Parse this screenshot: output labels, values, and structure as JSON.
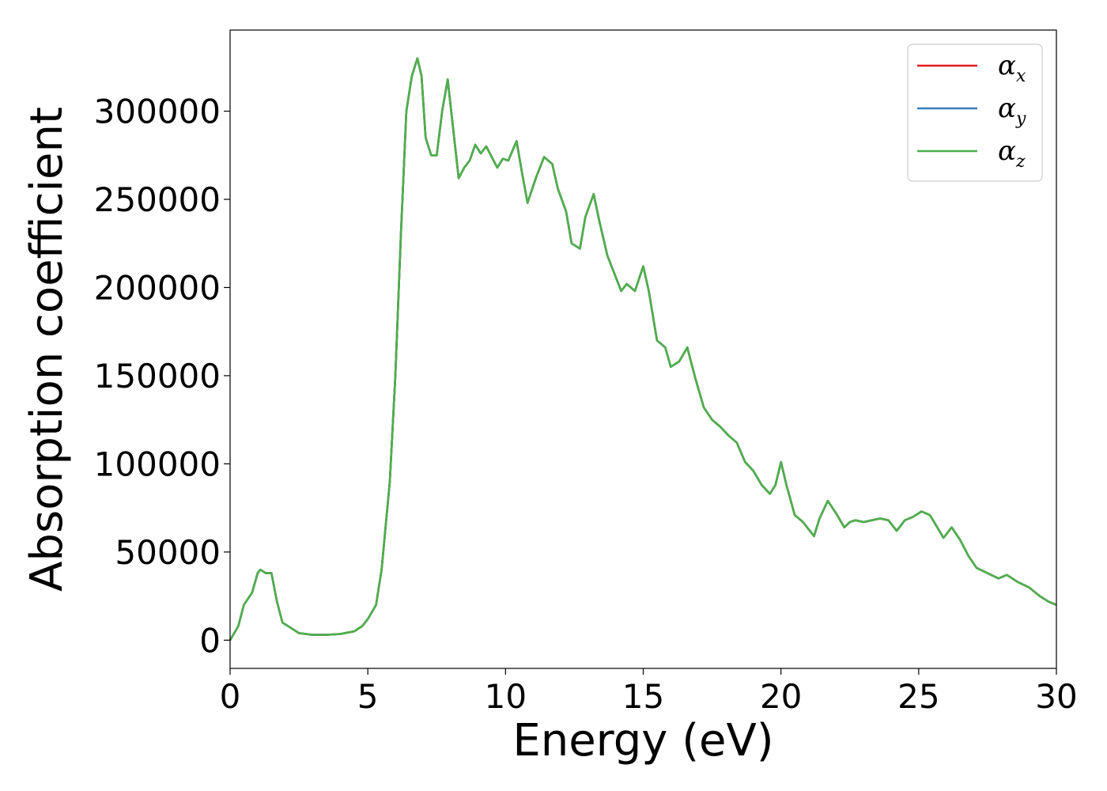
{
  "chart_data": {
    "type": "line",
    "xlabel": "Energy (eV)",
    "ylabel": "Absorption coefficient",
    "xlim": [
      0,
      30
    ],
    "ylim": [
      -16000,
      346000
    ],
    "xticks": [
      0,
      5,
      10,
      15,
      20,
      25,
      30
    ],
    "yticks": [
      0,
      50000,
      100000,
      150000,
      200000,
      250000,
      300000
    ],
    "xtick_labels": [
      "0",
      "5",
      "10",
      "15",
      "20",
      "25",
      "30"
    ],
    "ytick_labels": [
      "0",
      "50000",
      "100000",
      "150000",
      "200000",
      "250000",
      "300000"
    ],
    "grid": false,
    "legend_position": "top-right",
    "x": [
      0,
      0.3,
      0.5,
      0.8,
      1.0,
      1.1,
      1.3,
      1.5,
      1.7,
      1.9,
      2.2,
      2.5,
      3.0,
      3.5,
      4.0,
      4.5,
      4.8,
      5.0,
      5.3,
      5.5,
      5.8,
      6.0,
      6.2,
      6.4,
      6.6,
      6.8,
      6.95,
      7.1,
      7.3,
      7.5,
      7.7,
      7.9,
      8.1,
      8.3,
      8.5,
      8.7,
      8.9,
      9.1,
      9.3,
      9.5,
      9.7,
      9.9,
      10.1,
      10.4,
      10.6,
      10.8,
      11.1,
      11.4,
      11.7,
      11.9,
      12.2,
      12.4,
      12.7,
      12.9,
      13.2,
      13.4,
      13.7,
      13.9,
      14.2,
      14.4,
      14.7,
      15.0,
      15.2,
      15.5,
      15.8,
      16.0,
      16.3,
      16.6,
      16.9,
      17.2,
      17.5,
      17.8,
      18.1,
      18.4,
      18.7,
      19.0,
      19.3,
      19.6,
      19.8,
      20.0,
      20.2,
      20.5,
      20.8,
      21.2,
      21.4,
      21.7,
      22.0,
      22.3,
      22.5,
      22.7,
      23.0,
      23.3,
      23.6,
      23.9,
      24.2,
      24.5,
      24.8,
      25.1,
      25.4,
      25.6,
      25.9,
      26.2,
      26.5,
      26.8,
      27.1,
      27.5,
      27.9,
      28.2,
      28.6,
      29.0,
      29.4,
      29.7,
      30.0
    ],
    "series": [
      {
        "name": "α_x",
        "color": "#e41a1c",
        "values": [
          0,
          8000,
          20000,
          27000,
          38000,
          40000,
          38000,
          38000,
          22000,
          10000,
          7000,
          4000,
          3000,
          3000,
          3500,
          5000,
          8000,
          12000,
          20000,
          40000,
          90000,
          150000,
          230000,
          300000,
          320000,
          330000,
          320000,
          285000,
          275000,
          275000,
          300000,
          318000,
          290000,
          262000,
          268000,
          272000,
          281000,
          276000,
          280000,
          274000,
          268000,
          273000,
          272000,
          283000,
          265000,
          248000,
          262000,
          274000,
          270000,
          256000,
          243000,
          225000,
          222000,
          240000,
          253000,
          238000,
          218000,
          210000,
          198000,
          202000,
          198000,
          212000,
          198000,
          170000,
          166000,
          155000,
          158000,
          166000,
          148000,
          132000,
          125000,
          121000,
          116000,
          112000,
          101000,
          96000,
          88000,
          83000,
          88000,
          101000,
          88000,
          71000,
          67000,
          59000,
          69000,
          79000,
          72000,
          64000,
          67000,
          68000,
          67000,
          68000,
          69000,
          68000,
          62000,
          68000,
          70000,
          73000,
          71000,
          66000,
          58000,
          64000,
          57000,
          48000,
          41000,
          38000,
          35000,
          37000,
          33000,
          30000,
          25000,
          22000,
          20000
        ]
      },
      {
        "name": "α_y",
        "color": "#377eb8",
        "values": [
          0,
          8000,
          20000,
          27000,
          38000,
          40000,
          38000,
          38000,
          22000,
          10000,
          7000,
          4000,
          3000,
          3000,
          3500,
          5000,
          8000,
          12000,
          20000,
          40000,
          90000,
          150000,
          230000,
          300000,
          320000,
          330000,
          320000,
          285000,
          275000,
          275000,
          300000,
          318000,
          290000,
          262000,
          268000,
          272000,
          281000,
          276000,
          280000,
          274000,
          268000,
          273000,
          272000,
          283000,
          265000,
          248000,
          262000,
          274000,
          270000,
          256000,
          243000,
          225000,
          222000,
          240000,
          253000,
          238000,
          218000,
          210000,
          198000,
          202000,
          198000,
          212000,
          198000,
          170000,
          166000,
          155000,
          158000,
          166000,
          148000,
          132000,
          125000,
          121000,
          116000,
          112000,
          101000,
          96000,
          88000,
          83000,
          88000,
          101000,
          88000,
          71000,
          67000,
          59000,
          69000,
          79000,
          72000,
          64000,
          67000,
          68000,
          67000,
          68000,
          69000,
          68000,
          62000,
          68000,
          70000,
          73000,
          71000,
          66000,
          58000,
          64000,
          57000,
          48000,
          41000,
          38000,
          35000,
          37000,
          33000,
          30000,
          25000,
          22000,
          20000
        ]
      },
      {
        "name": "α_z",
        "color": "#4daf4a",
        "values": [
          0,
          8000,
          20000,
          27000,
          38000,
          40000,
          38000,
          38000,
          22000,
          10000,
          7000,
          4000,
          3000,
          3000,
          3500,
          5000,
          8000,
          12000,
          20000,
          40000,
          90000,
          150000,
          230000,
          300000,
          320000,
          330000,
          320000,
          285000,
          275000,
          275000,
          300000,
          318000,
          290000,
          262000,
          268000,
          272000,
          281000,
          276000,
          280000,
          274000,
          268000,
          273000,
          272000,
          283000,
          265000,
          248000,
          262000,
          274000,
          270000,
          256000,
          243000,
          225000,
          222000,
          240000,
          253000,
          238000,
          218000,
          210000,
          198000,
          202000,
          198000,
          212000,
          198000,
          170000,
          166000,
          155000,
          158000,
          166000,
          148000,
          132000,
          125000,
          121000,
          116000,
          112000,
          101000,
          96000,
          88000,
          83000,
          88000,
          101000,
          88000,
          71000,
          67000,
          59000,
          69000,
          79000,
          72000,
          64000,
          67000,
          68000,
          67000,
          68000,
          69000,
          68000,
          62000,
          68000,
          70000,
          73000,
          71000,
          66000,
          58000,
          64000,
          57000,
          48000,
          41000,
          38000,
          35000,
          37000,
          33000,
          30000,
          25000,
          22000,
          20000
        ]
      }
    ],
    "legend": [
      {
        "symbol": "α",
        "sub": "x",
        "color": "#e41a1c"
      },
      {
        "symbol": "α",
        "sub": "y",
        "color": "#377eb8"
      },
      {
        "symbol": "α",
        "sub": "z",
        "color": "#4daf4a"
      }
    ]
  }
}
